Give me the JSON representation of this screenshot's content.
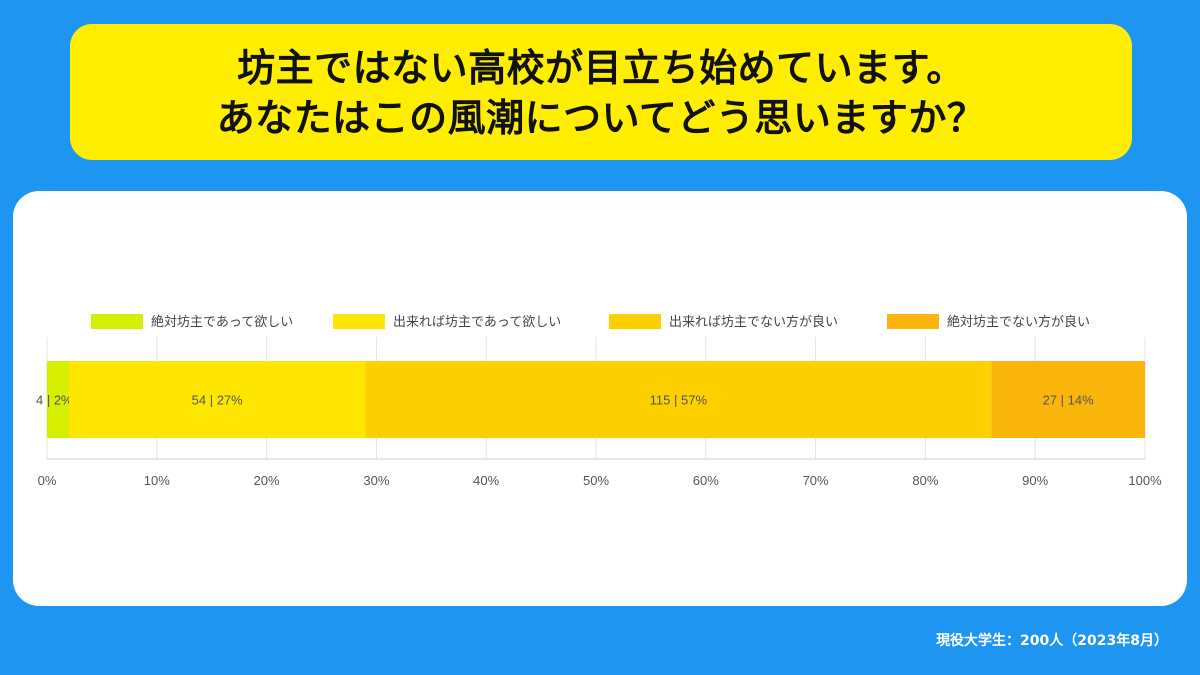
{
  "title": {
    "line1": "坊主ではない高校が目立ち始めています。",
    "line2": "あなたはこの風潮についてどう思いますか？"
  },
  "footer": "現役大学生：200人（2023年8月）",
  "chart_data": {
    "type": "bar",
    "orientation": "horizontal",
    "stacked": true,
    "title": "",
    "xlabel": "",
    "ylabel": "",
    "categories": [
      ""
    ],
    "xlim": [
      0,
      100
    ],
    "x_ticks": [
      "0%",
      "10%",
      "20%",
      "30%",
      "40%",
      "50%",
      "60%",
      "70%",
      "80%",
      "90%",
      "100%"
    ],
    "grid": true,
    "legend_position": "top",
    "series": [
      {
        "name": "絶対坊主であって欲しい",
        "count": 4,
        "percent": 2,
        "label": "4 | 2%",
        "color": "#d6ee00"
      },
      {
        "name": "出来れば坊主であって欲しい",
        "count": 54,
        "percent": 27,
        "label": "54 | 27%",
        "color": "#ffe600"
      },
      {
        "name": "出来れば坊主でない方が良い",
        "count": 115,
        "percent": 57,
        "label": "115 | 57%",
        "color": "#ffd000"
      },
      {
        "name": "絶対坊主でない方が良い",
        "count": 27,
        "percent": 14,
        "label": "27 | 14%",
        "color": "#f9b50a"
      }
    ]
  }
}
